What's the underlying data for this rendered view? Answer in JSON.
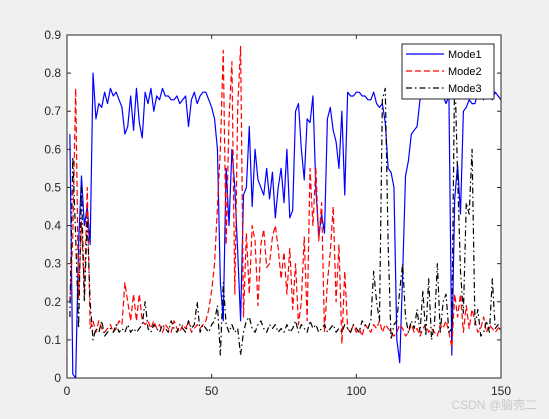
{
  "chart_data": {
    "type": "line",
    "title": "",
    "xlabel": "",
    "ylabel": "",
    "xlim": [
      0,
      150
    ],
    "ylim": [
      0,
      0.9
    ],
    "x_ticks": [
      0,
      50,
      100,
      150
    ],
    "y_ticks": [
      0,
      0.1,
      0.2,
      0.3,
      0.4,
      0.5,
      0.6,
      0.7,
      0.8,
      0.9
    ],
    "grid": false,
    "legend": "top-right",
    "x": [
      1,
      2,
      3,
      4,
      5,
      6,
      7,
      8,
      9,
      10,
      11,
      12,
      13,
      14,
      15,
      16,
      17,
      18,
      19,
      20,
      21,
      22,
      23,
      24,
      25,
      26,
      27,
      28,
      29,
      30,
      31,
      32,
      33,
      34,
      35,
      36,
      37,
      38,
      39,
      40,
      41,
      42,
      43,
      44,
      45,
      46,
      47,
      48,
      49,
      50,
      51,
      52,
      53,
      54,
      55,
      56,
      57,
      58,
      59,
      60,
      61,
      62,
      63,
      64,
      65,
      66,
      67,
      68,
      69,
      70,
      71,
      72,
      73,
      74,
      75,
      76,
      77,
      78,
      79,
      80,
      81,
      82,
      83,
      84,
      85,
      86,
      87,
      88,
      89,
      90,
      91,
      92,
      93,
      94,
      95,
      96,
      97,
      98,
      99,
      100,
      101,
      102,
      103,
      104,
      105,
      106,
      107,
      108,
      109,
      110,
      111,
      112,
      113,
      114,
      115,
      116,
      117,
      118,
      119,
      120,
      121,
      122,
      123,
      124,
      125,
      126,
      127,
      128,
      129,
      130,
      131,
      132,
      133,
      134,
      135,
      136,
      137,
      138,
      139,
      140,
      141,
      142,
      143,
      144,
      145,
      146,
      147,
      148,
      149,
      150
    ],
    "series": [
      {
        "name": "Mode1",
        "color": "#0000ff",
        "dash": "solid",
        "values": [
          0.64,
          0.01,
          0.0,
          0.35,
          0.53,
          0.4,
          0.45,
          0.35,
          0.8,
          0.68,
          0.72,
          0.71,
          0.75,
          0.72,
          0.76,
          0.74,
          0.75,
          0.73,
          0.71,
          0.64,
          0.66,
          0.74,
          0.65,
          0.76,
          0.67,
          0.63,
          0.75,
          0.72,
          0.76,
          0.7,
          0.74,
          0.73,
          0.76,
          0.74,
          0.74,
          0.73,
          0.73,
          0.74,
          0.72,
          0.73,
          0.74,
          0.66,
          0.73,
          0.75,
          0.72,
          0.74,
          0.75,
          0.75,
          0.73,
          0.71,
          0.68,
          0.6,
          0.25,
          0.15,
          0.55,
          0.4,
          0.6,
          0.5,
          0.33,
          0.15,
          0.48,
          0.5,
          0.66,
          0.45,
          0.6,
          0.52,
          0.5,
          0.48,
          0.55,
          0.47,
          0.54,
          0.42,
          0.5,
          0.55,
          0.46,
          0.6,
          0.42,
          0.44,
          0.7,
          0.72,
          0.6,
          0.52,
          0.68,
          0.67,
          0.74,
          0.5,
          0.37,
          0.43,
          0.38,
          0.68,
          0.71,
          0.65,
          0.62,
          0.55,
          0.7,
          0.48,
          0.75,
          0.74,
          0.74,
          0.75,
          0.75,
          0.74,
          0.74,
          0.73,
          0.73,
          0.75,
          0.72,
          0.71,
          0.72,
          0.67,
          0.55,
          0.54,
          0.5,
          0.1,
          0.04,
          0.27,
          0.53,
          0.57,
          0.64,
          0.65,
          0.66,
          0.73,
          0.74,
          0.75,
          0.75,
          0.75,
          0.75,
          0.74,
          0.76,
          0.74,
          0.72,
          0.74,
          0.06,
          0.47,
          0.56,
          0.43,
          0.7,
          0.71,
          0.73,
          0.72,
          0.72,
          0.75,
          0.74,
          0.73,
          0.76,
          0.74,
          0.73,
          0.75,
          0.74,
          0.73
        ]
      },
      {
        "name": "Mode2",
        "color": "#ff0000",
        "dash": "dashed",
        "values": [
          0.2,
          0.37,
          0.76,
          0.21,
          0.41,
          0.22,
          0.5,
          0.13,
          0.15,
          0.12,
          0.15,
          0.13,
          0.12,
          0.13,
          0.14,
          0.12,
          0.13,
          0.15,
          0.14,
          0.25,
          0.2,
          0.15,
          0.22,
          0.15,
          0.22,
          0.15,
          0.14,
          0.15,
          0.13,
          0.15,
          0.13,
          0.14,
          0.12,
          0.14,
          0.13,
          0.12,
          0.15,
          0.13,
          0.12,
          0.14,
          0.13,
          0.15,
          0.12,
          0.13,
          0.14,
          0.13,
          0.14,
          0.15,
          0.18,
          0.23,
          0.3,
          0.45,
          0.6,
          0.86,
          0.35,
          0.68,
          0.83,
          0.22,
          0.71,
          0.87,
          0.16,
          0.38,
          0.22,
          0.4,
          0.36,
          0.19,
          0.35,
          0.39,
          0.29,
          0.3,
          0.37,
          0.4,
          0.34,
          0.26,
          0.33,
          0.22,
          0.34,
          0.18,
          0.3,
          0.14,
          0.2,
          0.37,
          0.15,
          0.55,
          0.4,
          0.55,
          0.36,
          0.46,
          0.12,
          0.25,
          0.33,
          0.45,
          0.2,
          0.35,
          0.09,
          0.28,
          0.13,
          0.12,
          0.14,
          0.12,
          0.13,
          0.11,
          0.14,
          0.13,
          0.12,
          0.14,
          0.13,
          0.15,
          0.12,
          0.14,
          0.13,
          0.12,
          0.11,
          0.12,
          0.14,
          0.13,
          0.11,
          0.12,
          0.14,
          0.12,
          0.13,
          0.11,
          0.13,
          0.14,
          0.12,
          0.13,
          0.12,
          0.11,
          0.14,
          0.13,
          0.15,
          0.12,
          0.08,
          0.22,
          0.16,
          0.22,
          0.12,
          0.19,
          0.13,
          0.18,
          0.15,
          0.12,
          0.13,
          0.16,
          0.12,
          0.14,
          0.13,
          0.12,
          0.13,
          0.14
        ]
      },
      {
        "name": "Mode3",
        "color": "#000000",
        "dash": "dashdot",
        "values": [
          0.16,
          0.58,
          0.37,
          0.13,
          0.5,
          0.2,
          0.42,
          0.2,
          0.1,
          0.13,
          0.12,
          0.15,
          0.11,
          0.12,
          0.13,
          0.12,
          0.14,
          0.12,
          0.13,
          0.12,
          0.14,
          0.12,
          0.13,
          0.12,
          0.13,
          0.14,
          0.2,
          0.13,
          0.12,
          0.14,
          0.13,
          0.12,
          0.14,
          0.13,
          0.12,
          0.15,
          0.13,
          0.12,
          0.14,
          0.13,
          0.12,
          0.15,
          0.13,
          0.14,
          0.2,
          0.12,
          0.14,
          0.13,
          0.12,
          0.14,
          0.15,
          0.19,
          0.06,
          0.25,
          0.14,
          0.12,
          0.14,
          0.12,
          0.13,
          0.06,
          0.12,
          0.15,
          0.16,
          0.13,
          0.12,
          0.14,
          0.15,
          0.13,
          0.12,
          0.14,
          0.13,
          0.14,
          0.12,
          0.13,
          0.12,
          0.14,
          0.12,
          0.13,
          0.15,
          0.12,
          0.14,
          0.13,
          0.12,
          0.15,
          0.13,
          0.14,
          0.12,
          0.13,
          0.14,
          0.12,
          0.13,
          0.14,
          0.12,
          0.13,
          0.12,
          0.14,
          0.13,
          0.12,
          0.14,
          0.13,
          0.12,
          0.15,
          0.14,
          0.13,
          0.15,
          0.28,
          0.2,
          0.15,
          0.73,
          0.76,
          0.35,
          0.1,
          0.14,
          0.15,
          0.23,
          0.3,
          0.16,
          0.12,
          0.15,
          0.13,
          0.18,
          0.12,
          0.23,
          0.11,
          0.26,
          0.1,
          0.14,
          0.3,
          0.12,
          0.2,
          0.22,
          0.12,
          0.13,
          0.82,
          0.53,
          0.28,
          0.17,
          0.46,
          0.43,
          0.6,
          0.14,
          0.18,
          0.11,
          0.12,
          0.15,
          0.12,
          0.26,
          0.13,
          0.14,
          0.12
        ]
      }
    ]
  },
  "watermark": "CSDN @脑壳二"
}
